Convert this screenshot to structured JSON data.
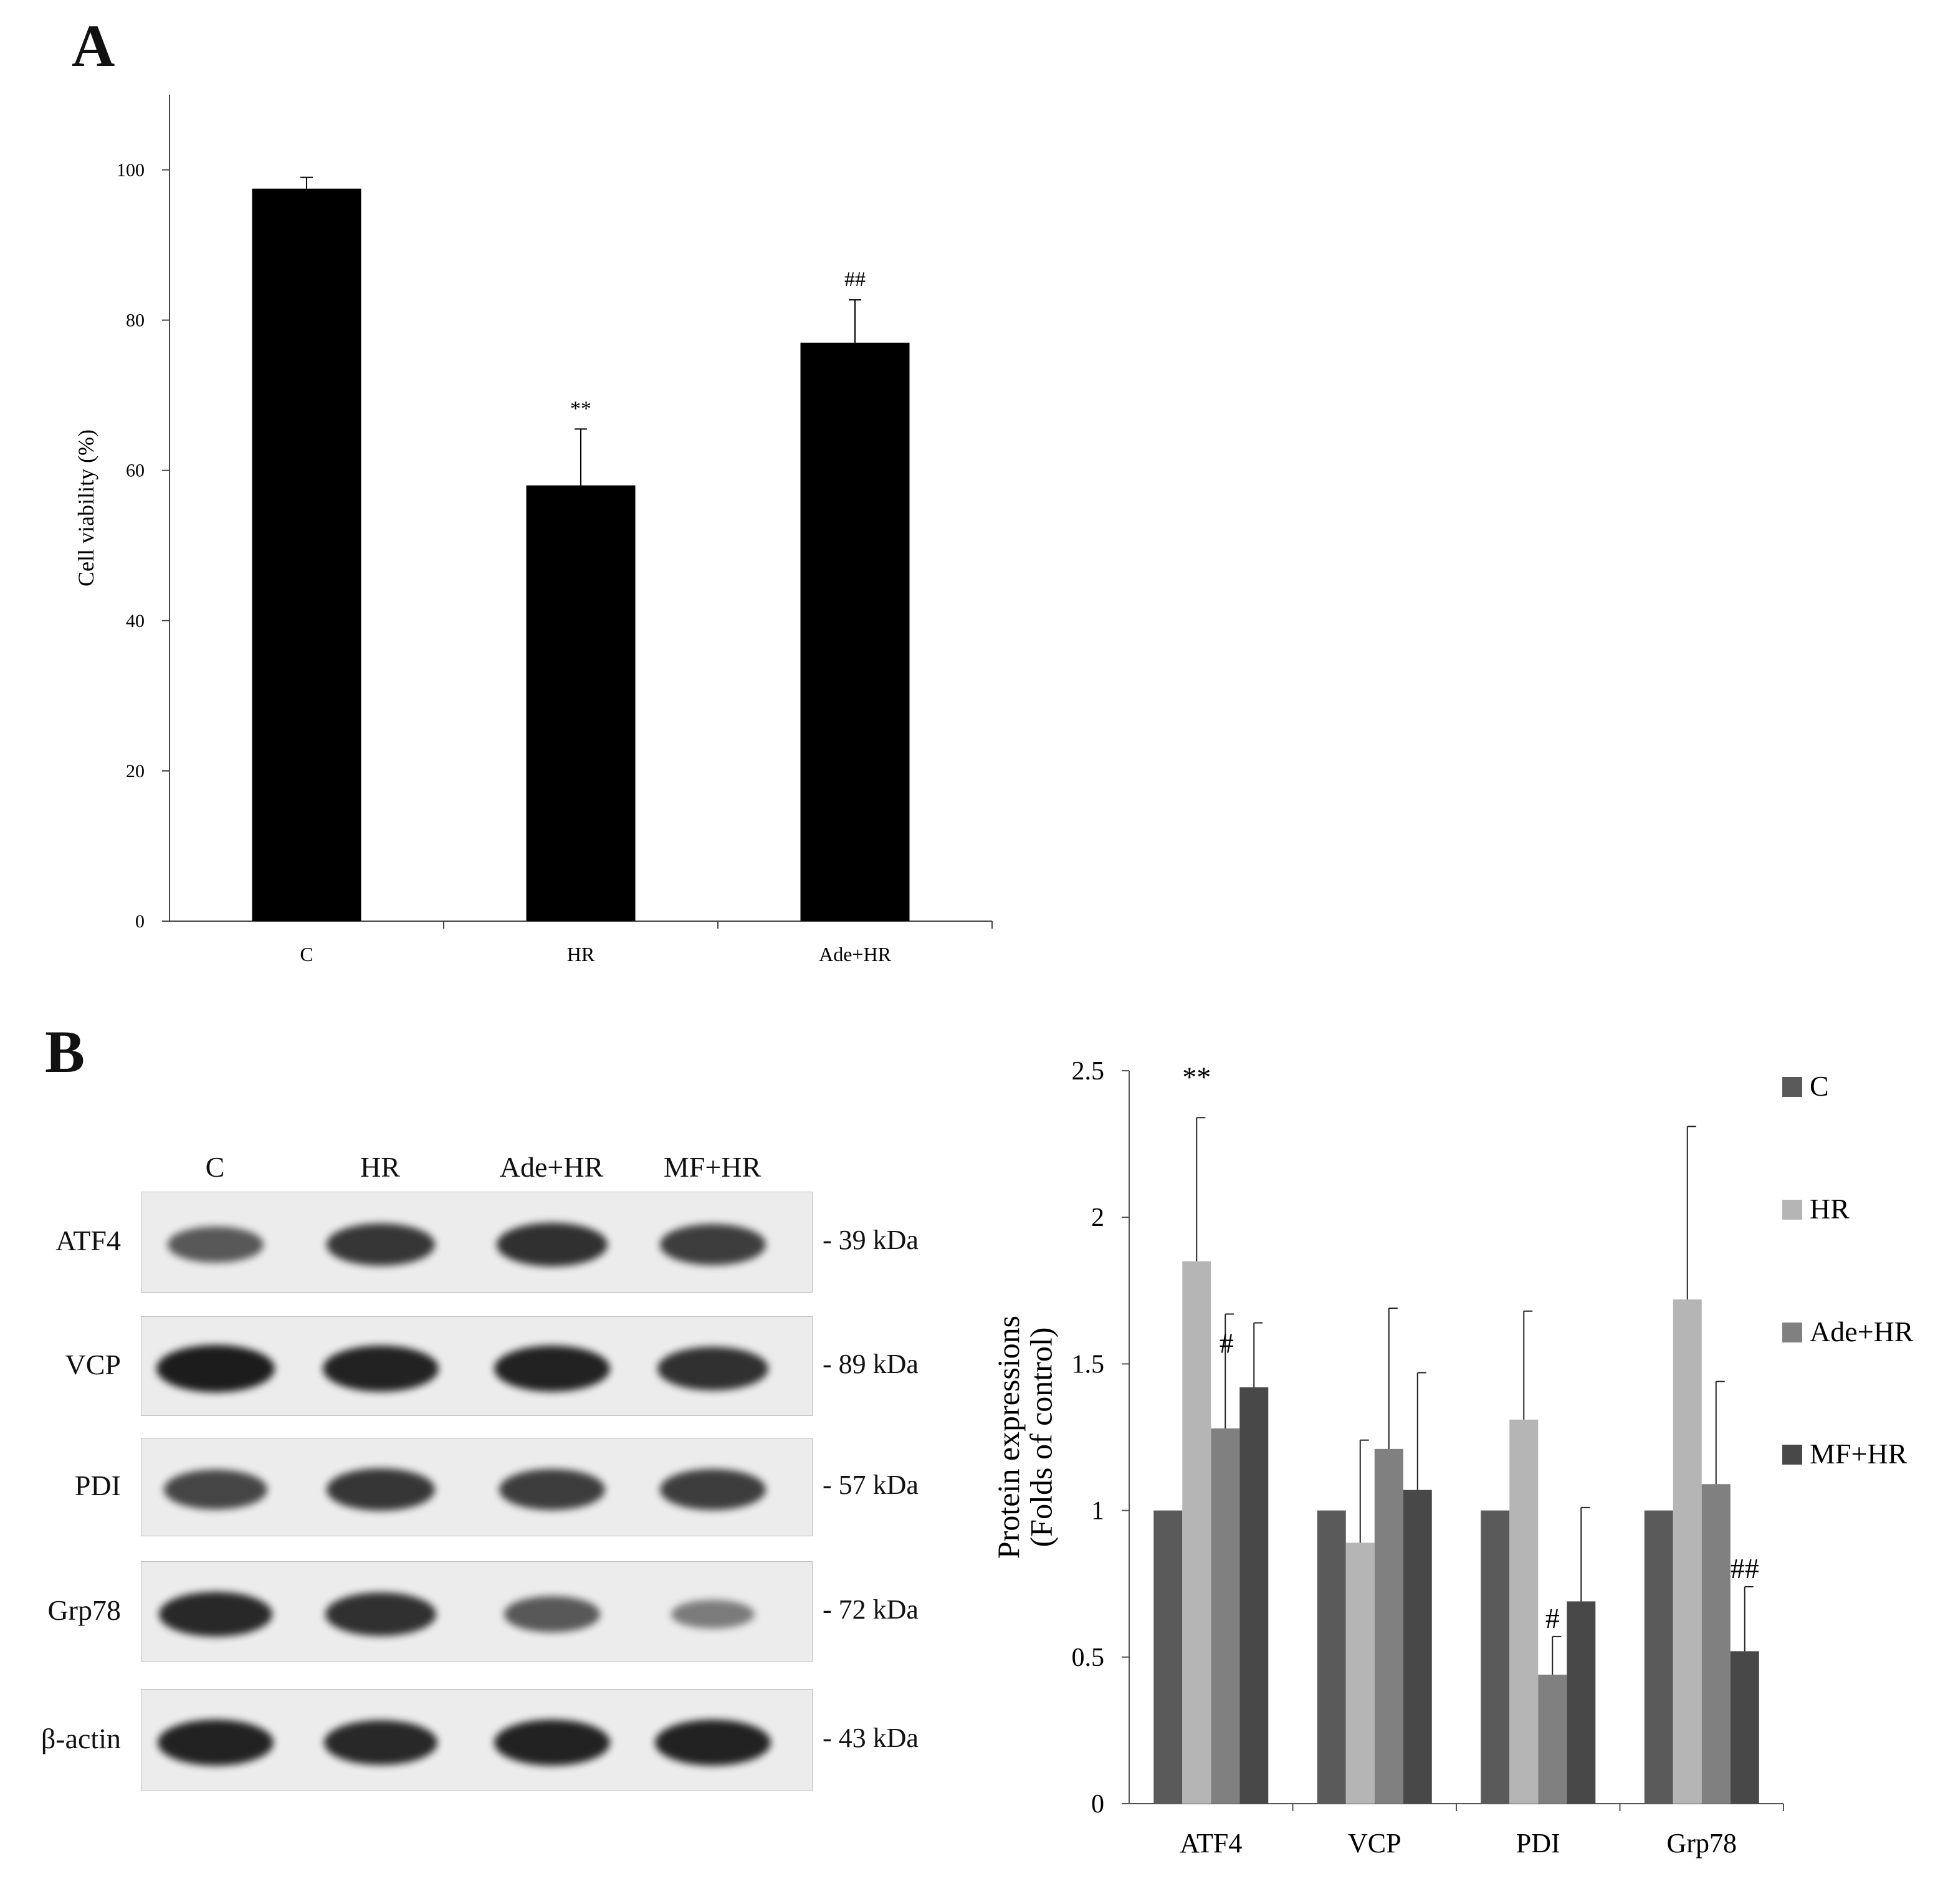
{
  "panels": {
    "a_label": "A",
    "b_label": "B"
  },
  "chart_data": [
    {
      "type": "bar",
      "panel": "A",
      "categories": [
        "C",
        "HR",
        "Ade+HR"
      ],
      "values": [
        97.5,
        58,
        77
      ],
      "errors": [
        1.5,
        7.5,
        5.7
      ],
      "annotations": [
        "",
        "**",
        "##"
      ],
      "ylabel": "Cell viability (%)",
      "xlabel": "",
      "ylim": [
        0,
        110
      ],
      "yticks": [
        0,
        20,
        40,
        60,
        80,
        100
      ],
      "color": "#000000",
      "grid": false
    },
    {
      "type": "bar",
      "panel": "B",
      "categories": [
        "ATF4",
        "VCP",
        "PDI",
        "Grp78"
      ],
      "series": [
        {
          "name": "C",
          "values": [
            1.0,
            1.0,
            1.0,
            1.0
          ],
          "errors": [
            0,
            0,
            0,
            0
          ],
          "color": "#5a5a5a"
        },
        {
          "name": "HR",
          "values": [
            1.85,
            0.89,
            1.31,
            1.72
          ],
          "errors": [
            0.49,
            0.35,
            0.37,
            0.59
          ],
          "color": "#b5b5b5"
        },
        {
          "name": "Ade+HR",
          "values": [
            1.28,
            1.21,
            0.44,
            1.09
          ],
          "errors": [
            0.39,
            0.48,
            0.13,
            0.35
          ],
          "color": "#808080"
        },
        {
          "name": "MF+HR",
          "values": [
            1.42,
            1.07,
            0.69,
            0.52
          ],
          "errors": [
            0.22,
            0.4,
            0.32,
            0.22
          ],
          "color": "#484848"
        }
      ],
      "annotations": [
        {
          "category": "ATF4",
          "series": "HR",
          "text": "**"
        },
        {
          "category": "ATF4",
          "series": "Ade+HR",
          "text": "#"
        },
        {
          "category": "PDI",
          "series": "Ade+HR",
          "text": "#"
        },
        {
          "category": "Grp78",
          "series": "MF+HR",
          "text": "##"
        }
      ],
      "ylabel_line1": "Protein expressions",
      "ylabel_line2": "(Folds of control)",
      "ylim": [
        0,
        2.5
      ],
      "yticks": [
        "0",
        "0.5",
        "1",
        "1.5",
        "2",
        "2.5"
      ],
      "legend_position": "right",
      "grid": false
    }
  ],
  "western_blot": {
    "lanes": [
      "C",
      "HR",
      "Ade+HR",
      "MF+HR"
    ],
    "rows": [
      {
        "protein": "ATF4",
        "size": "- 39 kDa",
        "intensity": [
          0.55,
          0.8,
          0.85,
          0.75
        ]
      },
      {
        "protein": "VCP",
        "size": "- 89 kDa",
        "intensity": [
          1.0,
          0.95,
          0.95,
          0.85
        ]
      },
      {
        "protein": "PDI",
        "size": "- 57 kDa",
        "intensity": [
          0.7,
          0.8,
          0.75,
          0.75
        ]
      },
      {
        "protein": "Grp78",
        "size": "- 72 kDa",
        "intensity": [
          0.9,
          0.85,
          0.55,
          0.3
        ]
      },
      {
        "protein": "β-actin",
        "size": "- 43 kDa",
        "intensity": [
          0.95,
          0.9,
          0.95,
          0.95
        ]
      }
    ]
  }
}
